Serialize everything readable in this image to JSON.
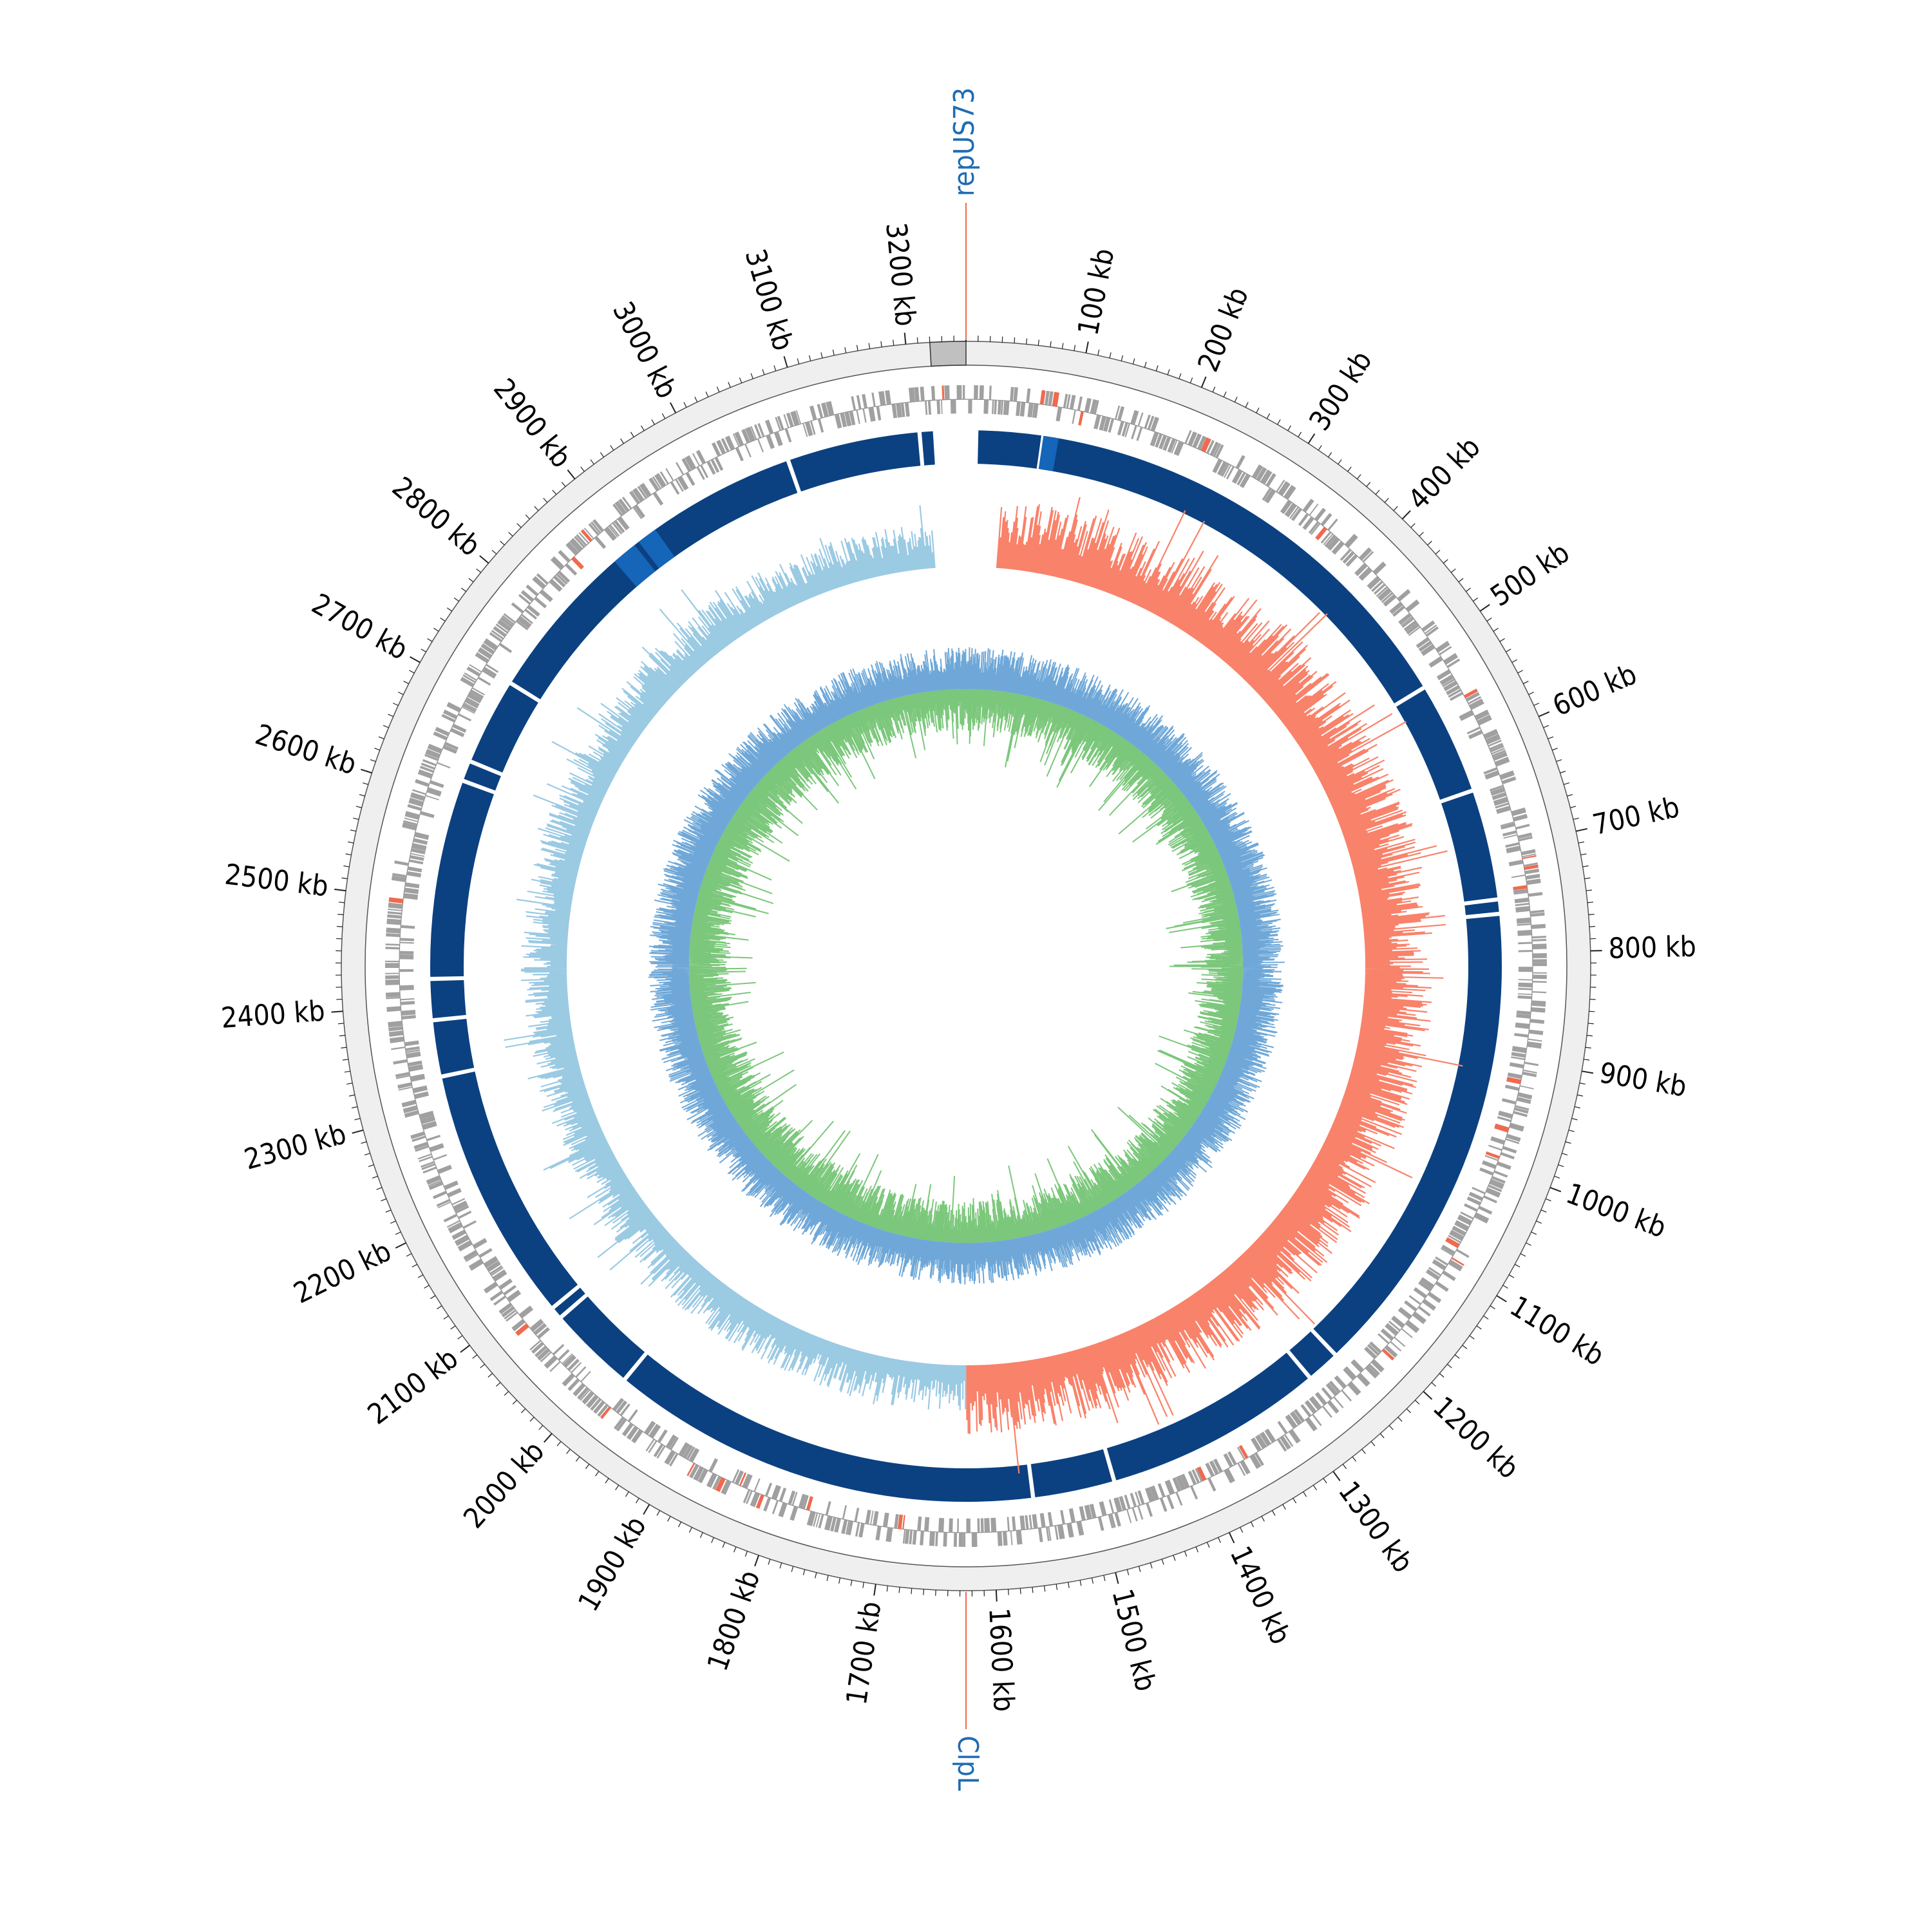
{
  "diagram": {
    "type": "circular-genome-map",
    "genome_length_kb": 3250,
    "tick_labels": [
      "100 kb",
      "200 kb",
      "300 kb",
      "400 kb",
      "500 kb",
      "600 kb",
      "700 kb",
      "800 kb",
      "900 kb",
      "1000 kb",
      "1100 kb",
      "1200 kb",
      "1300 kb",
      "1400 kb",
      "1500 kb",
      "1600 kb",
      "1700 kb",
      "1800 kb",
      "1900 kb",
      "2000 kb",
      "2100 kb",
      "2200 kb",
      "2300 kb",
      "2400 kb",
      "2500 kb",
      "2600 kb",
      "2700 kb",
      "2800 kb",
      "2900 kb",
      "3000 kb",
      "3100 kb",
      "3200 kb"
    ],
    "gene_markers": [
      {
        "label": "repUS73",
        "position_kb": 3250
      },
      {
        "label": "ClpL",
        "position_kb": 1625
      }
    ],
    "colors": {
      "ring_background": "#efefef",
      "ring_border": "#555555",
      "cds": "#a0a0a0",
      "cds_highlight": "#ef6a4f",
      "contig_blocks": "#0b4181",
      "contig_gap": "#1565b8",
      "gc_skew_positive": "#f9826a",
      "gc_skew_negative": "#9bcae3",
      "gc_content_outer": "#6fa8d8",
      "gc_content_inner": "#7bc77b",
      "marker_line": "#ef6a4f",
      "marker_label": "#1f6cb4",
      "origin_block": "#c0c0c0"
    }
  }
}
